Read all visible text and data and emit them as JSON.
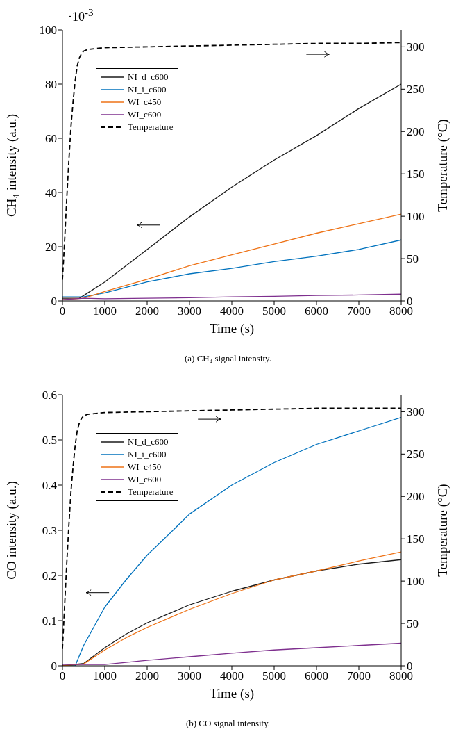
{
  "chart_data": [
    {
      "type": "line",
      "xlabel": "Time (s)",
      "ylabel": "CH₄ intensity (a.u.)",
      "y2label": "Temperature (°C)",
      "xlim": [
        0,
        8000
      ],
      "xticks": [
        0,
        1000,
        2000,
        3000,
        4000,
        5000,
        6000,
        7000,
        8000
      ],
      "ylim": [
        0,
        100
      ],
      "yticks": [
        0,
        20,
        40,
        60,
        80,
        100
      ],
      "y2lim": [
        0,
        320
      ],
      "y2ticks": [
        0,
        50,
        100,
        150,
        200,
        250,
        300
      ],
      "grid": false,
      "legend": "top left",
      "marker": "none",
      "annotations": [
        "·10$^{-3}$",
        "(a) CH₄ signal intensity."
      ],
      "series": [
        {
          "name": "NI_d_c600",
          "color": "#1a1a1a",
          "x": [
            0,
            400,
            1000,
            2000,
            3000,
            4000,
            5000,
            6000,
            7000,
            8000
          ],
          "values": [
            1,
            1,
            7,
            19,
            31,
            42,
            52,
            61,
            71,
            80
          ]
        },
        {
          "name": "NI_i_c600",
          "color": "#0072bd",
          "x": [
            0,
            500,
            1000,
            2000,
            3000,
            4000,
            5000,
            6000,
            7000,
            8000
          ],
          "values": [
            1.5,
            1.5,
            3,
            7,
            10,
            12,
            14.5,
            16.5,
            19,
            22.5
          ]
        },
        {
          "name": "WI_c450",
          "color": "#ee7216",
          "x": [
            0,
            500,
            1000,
            2000,
            3000,
            4000,
            5000,
            6000,
            7000,
            8000
          ],
          "values": [
            0.5,
            1,
            3.5,
            8,
            13,
            17,
            21,
            25,
            28.5,
            32
          ]
        },
        {
          "name": "WI_c600",
          "color": "#7e2f8e",
          "x": [
            0,
            500,
            1000,
            2000,
            3000,
            4000,
            5000,
            6000,
            7000,
            8000
          ],
          "values": [
            0.5,
            1,
            0.8,
            1,
            1.2,
            1.5,
            1.7,
            2,
            2.2,
            2.5
          ]
        },
        {
          "name": "Temperature",
          "color": "#000000",
          "axis": "y2",
          "line_style": "dashed",
          "x": [
            0,
            50,
            100,
            150,
            200,
            250,
            300,
            350,
            400,
            450,
            500,
            600,
            800,
            1000,
            2000,
            3000,
            4000,
            5000,
            6000,
            7000,
            8000
          ],
          "values": [
            25,
            70,
            120,
            165,
            205,
            235,
            260,
            278,
            287,
            292,
            295,
            297,
            298,
            299,
            300,
            301,
            302,
            303,
            304,
            304,
            305
          ]
        }
      ]
    },
    {
      "type": "line",
      "xlabel": "Time (s)",
      "ylabel": "CO intensity (a.u.)",
      "y2label": "Temperature (°C)",
      "xlim": [
        0,
        8000
      ],
      "xticks": [
        0,
        1000,
        2000,
        3000,
        4000,
        5000,
        6000,
        7000,
        8000
      ],
      "ylim": [
        0,
        0.6
      ],
      "yticks": [
        0,
        0.1,
        0.2,
        0.3,
        0.4,
        0.5,
        0.6
      ],
      "y2lim": [
        0,
        320
      ],
      "y2ticks": [
        0,
        50,
        100,
        150,
        200,
        250,
        300
      ],
      "grid": false,
      "legend": "top left",
      "marker": "none",
      "annotations": [
        "(b) CO signal intensity."
      ],
      "series": [
        {
          "name": "NI_d_c600",
          "color": "#1a1a1a",
          "x": [
            0,
            500,
            1000,
            1500,
            2000,
            3000,
            4000,
            5000,
            6000,
            7000,
            8000
          ],
          "values": [
            0,
            0.005,
            0.04,
            0.07,
            0.095,
            0.135,
            0.165,
            0.19,
            0.21,
            0.225,
            0.235
          ]
        },
        {
          "name": "NI_i_c600",
          "color": "#0072bd",
          "x": [
            0,
            300,
            500,
            1000,
            1500,
            2000,
            2500,
            3000,
            4000,
            5000,
            6000,
            7000,
            8000
          ],
          "values": [
            0,
            0,
            0.045,
            0.13,
            0.19,
            0.245,
            0.29,
            0.336,
            0.4,
            0.45,
            0.49,
            0.52,
            0.55
          ]
        },
        {
          "name": "WI_c450",
          "color": "#ee7216",
          "x": [
            0,
            500,
            1000,
            1500,
            2000,
            3000,
            4000,
            5000,
            6000,
            7000,
            8000
          ],
          "values": [
            0,
            0.004,
            0.035,
            0.062,
            0.085,
            0.125,
            0.16,
            0.19,
            0.21,
            0.232,
            0.252
          ]
        },
        {
          "name": "WI_c600",
          "color": "#7e2f8e",
          "x": [
            0,
            1000,
            2000,
            3000,
            4000,
            5000,
            6000,
            7000,
            8000
          ],
          "values": [
            0.003,
            0.003,
            0.012,
            0.02,
            0.028,
            0.035,
            0.04,
            0.045,
            0.05
          ]
        },
        {
          "name": "Temperature",
          "color": "#000000",
          "axis": "y2",
          "line_style": "dashed",
          "x": [
            0,
            50,
            100,
            150,
            200,
            250,
            300,
            350,
            400,
            450,
            500,
            600,
            800,
            1000,
            2000,
            3000,
            4000,
            5000,
            6000,
            7000,
            8000
          ],
          "values": [
            20,
            70,
            120,
            165,
            205,
            235,
            260,
            278,
            287,
            292,
            295,
            297,
            298,
            299,
            300,
            301,
            302,
            303,
            304,
            304,
            304
          ]
        }
      ]
    }
  ]
}
